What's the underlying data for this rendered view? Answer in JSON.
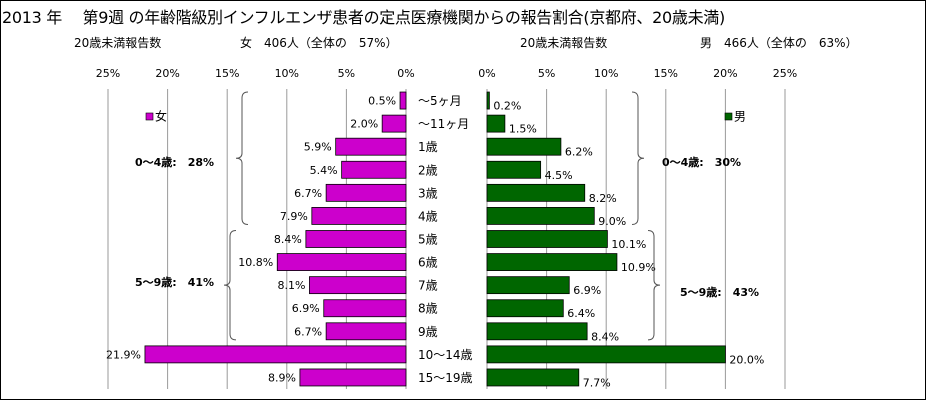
{
  "title": "2013 年　 第9週 の年齢階級別インフルエンザ患者の定点医療機関からの報告割合(京都府、20歳未満)",
  "left_header": {
    "label": "20歳未満報告数",
    "detail": "女　406人（全体の　57%）"
  },
  "right_header": {
    "label": "20歳未満報告数",
    "detail": "男　466人（全体の　63%）"
  },
  "chart_data": {
    "type": "bar",
    "categories": [
      "～5ヶ月",
      "～11ヶ月",
      "1歳",
      "2歳",
      "3歳",
      "4歳",
      "5歳",
      "6歳",
      "7歳",
      "8歳",
      "9歳",
      "10～14歳",
      "15～19歳"
    ],
    "series": [
      {
        "name": "女",
        "color": "#cc00cc",
        "values": [
          0.5,
          2.0,
          5.9,
          5.4,
          6.7,
          7.9,
          8.4,
          10.8,
          8.1,
          6.9,
          6.7,
          21.9,
          8.9
        ],
        "labels": [
          "0.5%",
          "2.0%",
          "5.9%",
          "5.4%",
          "6.7%",
          "7.9%",
          "8.4%",
          "10.8%",
          "8.1%",
          "6.9%",
          "6.7%",
          "21.9%",
          "8.9%"
        ],
        "ticks": [
          "25%",
          "20%",
          "15%",
          "10%",
          "5%",
          "0%"
        ]
      },
      {
        "name": "男",
        "color": "#006600",
        "values": [
          0.2,
          1.5,
          6.2,
          4.5,
          8.2,
          9.0,
          10.1,
          10.9,
          6.9,
          6.4,
          8.4,
          20.0,
          7.7
        ],
        "labels": [
          "0.2%",
          "1.5%",
          "6.2%",
          "4.5%",
          "8.2%",
          "9.0%",
          "10.1%",
          "10.9%",
          "6.9%",
          "6.4%",
          "8.4%",
          "20.0%",
          "7.7%"
        ],
        "ticks": [
          "0%",
          "5%",
          "10%",
          "15%",
          "20%",
          "25%"
        ]
      }
    ],
    "xlim": [
      0,
      25
    ],
    "tick_values": [
      0,
      5,
      10,
      15,
      20,
      25
    ],
    "grid": true,
    "legend": [
      "left: 女",
      "right: 男"
    ],
    "annotations": {
      "left": [
        "0～4歳:　28%",
        "5～9歳:　41%"
      ],
      "right": [
        "0～4歳:　30%",
        "5～9歳:　43%"
      ]
    }
  }
}
